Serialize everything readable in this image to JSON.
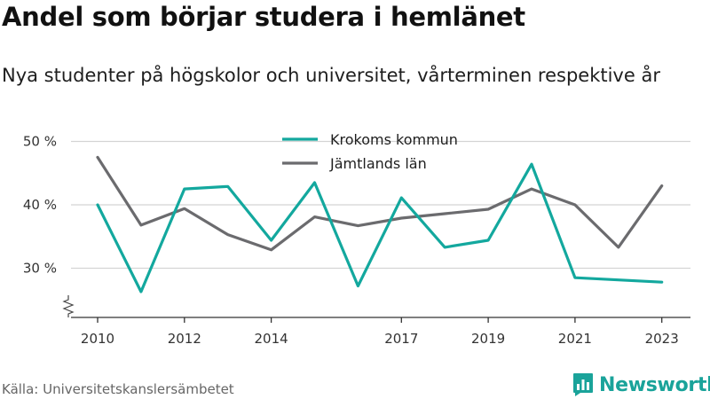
{
  "title": "Andel som börjar studera i hemlänet",
  "subtitle": "Nya studenter på högskolor och universitet, vårterminen respektive år",
  "source": "Källa: Universitetskanslersämbetet",
  "brand": {
    "name": "Newsworthy",
    "icon": "newsworthy-logo-icon",
    "color": "#1aa39a"
  },
  "chart_data": {
    "type": "line",
    "x": [
      2010,
      2011,
      2012,
      2013,
      2014,
      2015,
      2016,
      2017,
      2018,
      2019,
      2020,
      2021,
      2022,
      2023
    ],
    "x_tick_labels": [
      "2010",
      "2012",
      "2014",
      "2017",
      "2019",
      "2021",
      "2023"
    ],
    "y_ticks": [
      30,
      40,
      50
    ],
    "y_tick_labels": [
      "30 %",
      "40 %",
      "50 %"
    ],
    "ylim": [
      22,
      52
    ],
    "y_axis_break": true,
    "grid": true,
    "legend_position": "top-center",
    "series": [
      {
        "name": "Krokoms kommun",
        "color": "#13a89e",
        "values": [
          40.0,
          26.3,
          42.5,
          42.9,
          34.4,
          43.5,
          27.2,
          41.1,
          33.3,
          34.4,
          46.4,
          28.5,
          null,
          27.8
        ]
      },
      {
        "name": "Jämtlands län",
        "color": "#6b6b6e",
        "values": [
          47.5,
          36.8,
          39.4,
          35.3,
          32.9,
          38.1,
          36.7,
          37.9,
          38.6,
          39.3,
          42.5,
          40.0,
          33.3,
          43.0
        ]
      }
    ]
  }
}
